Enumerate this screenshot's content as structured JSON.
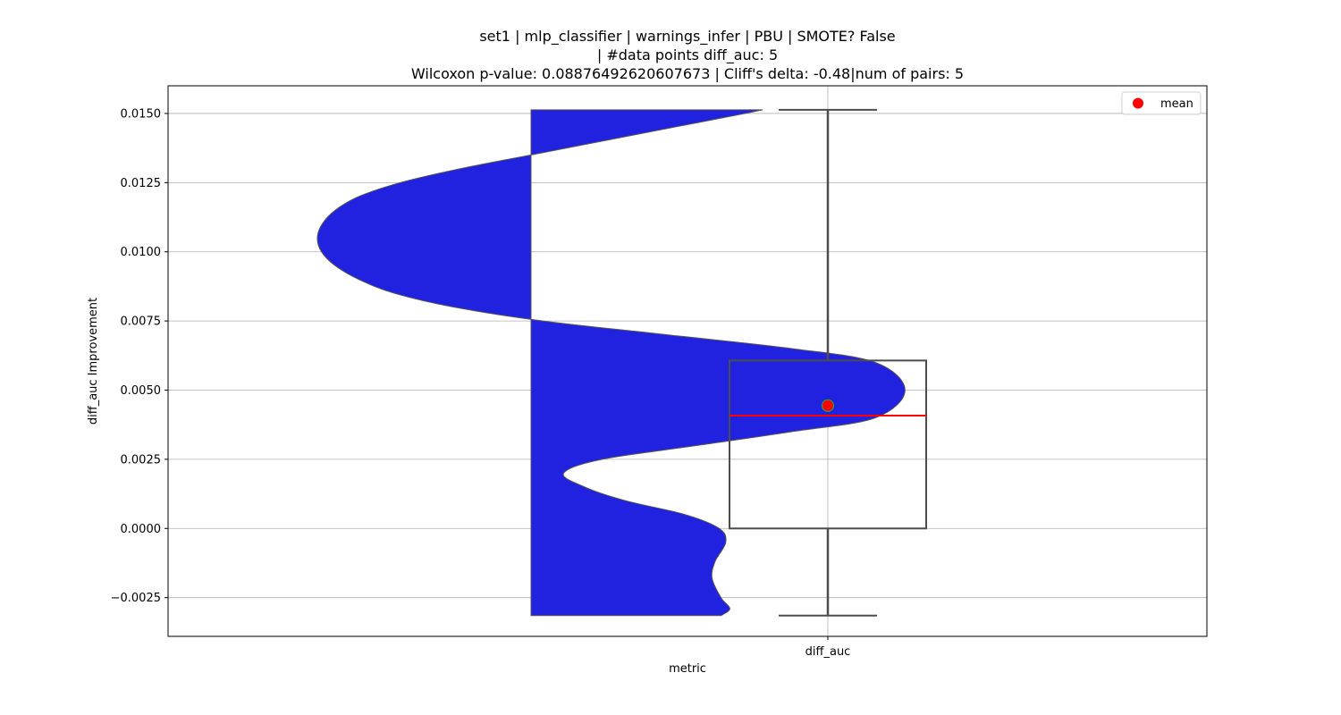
{
  "chart_data": {
    "type": "violin+box",
    "title_lines": [
      "set1 | mlp_classifier | warnings_infer | PBU | SMOTE? False",
      "| #data points diff_auc: 5",
      "Wilcoxon p-value: 0.08876492620607673 | Cliff's delta: -0.48|num of pairs: 5"
    ],
    "xlabel": "metric",
    "ylabel": "diff_auc Improvement",
    "categories": [
      "diff_auc"
    ],
    "ylim": [
      -0.0039,
      0.016
    ],
    "yticks": [
      -0.0025,
      0.0,
      0.0025,
      0.005,
      0.0075,
      0.01,
      0.0125,
      0.015
    ],
    "ytick_labels": [
      "−0.0025",
      "0.0000",
      "0.0025",
      "0.0050",
      "0.0075",
      "0.0100",
      "0.0125",
      "0.0150"
    ],
    "grid": true,
    "legend": {
      "placement": "top-right",
      "entries": [
        {
          "label": "mean",
          "marker": "circle",
          "color": "#ff0000"
        }
      ]
    },
    "box": {
      "category": "diff_auc",
      "whisker_low": -0.00315,
      "q1": 0.0,
      "median": 0.00408,
      "q3": 0.00607,
      "whisker_high": 0.01513,
      "mean": 0.00444,
      "median_color": "#ff0000",
      "mean_color": "#ff0000",
      "mean_edge_color": "#2ca02c"
    },
    "violin": {
      "color": "#2121e0",
      "edge_color": "#555555",
      "note_profile": "left-edge offset in category-width units at each y value",
      "profile": [
        [
          -0.00315,
          0.18
        ],
        [
          -0.0029,
          0.165
        ],
        [
          -0.0025,
          0.18
        ],
        [
          -0.0018,
          0.195
        ],
        [
          -0.0012,
          0.19
        ],
        [
          -0.0005,
          0.172
        ],
        [
          0.0,
          0.183
        ],
        [
          0.0005,
          0.24
        ],
        [
          0.001,
          0.34
        ],
        [
          0.0015,
          0.41
        ],
        [
          0.002,
          0.445
        ],
        [
          0.0025,
          0.38
        ],
        [
          0.003,
          0.22
        ],
        [
          0.0035,
          0.06
        ],
        [
          0.004,
          -0.08
        ],
        [
          0.005,
          -0.13
        ],
        [
          0.006,
          -0.08
        ],
        [
          0.0065,
          0.06
        ],
        [
          0.007,
          0.27
        ],
        [
          0.0075,
          0.48
        ],
        [
          0.008,
          0.63
        ],
        [
          0.0085,
          0.73
        ],
        [
          0.009,
          0.79
        ],
        [
          0.0095,
          0.83
        ],
        [
          0.01,
          0.853
        ],
        [
          0.0105,
          0.86
        ],
        [
          0.011,
          0.852
        ],
        [
          0.0115,
          0.83
        ],
        [
          0.012,
          0.79
        ],
        [
          0.0125,
          0.72
        ],
        [
          0.013,
          0.62
        ],
        [
          0.0135,
          0.5
        ],
        [
          0.014,
          0.38
        ],
        [
          0.0145,
          0.26
        ],
        [
          0.015,
          0.14
        ],
        [
          0.01513,
          0.11
        ]
      ],
      "right_edge": 0.5
    }
  }
}
